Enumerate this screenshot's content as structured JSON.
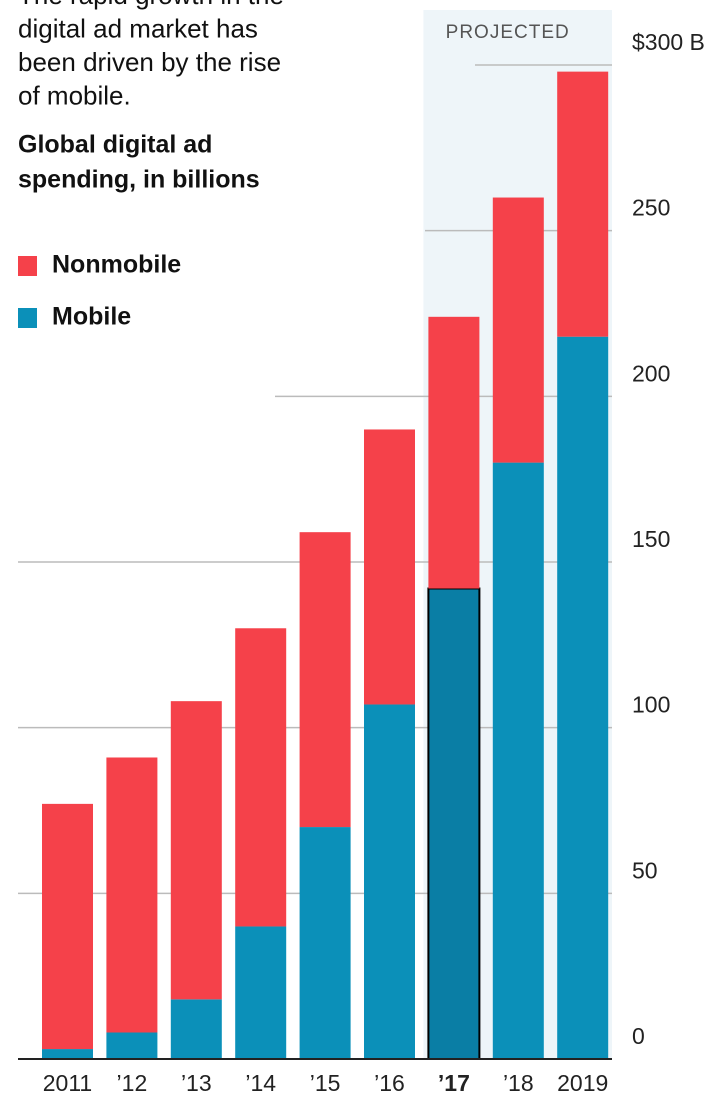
{
  "chart_data": {
    "type": "stacked_bar",
    "intro": [
      "The rapid growth in the",
      "digital ad market has",
      "been driven by the rise",
      "of mobile."
    ],
    "subtitle": [
      "Global digital ad",
      "spending, in billions"
    ],
    "categories": [
      "2011",
      "’12",
      "’13",
      "’14",
      "’15",
      "’16",
      "’17",
      "’18",
      "2019"
    ],
    "series": [
      {
        "name": "Mobile",
        "color": "#0b90b9",
        "values": [
          3,
          8,
          18,
          40,
          70,
          107,
          142,
          180,
          218
        ]
      },
      {
        "name": "Nonmobile",
        "color": "#f5414a",
        "values": [
          74,
          83,
          90,
          90,
          89,
          83,
          82,
          80,
          80
        ]
      }
    ],
    "ylim": [
      0,
      300
    ],
    "yticks": [
      0,
      50,
      100,
      150,
      200,
      250,
      {
        "value": 300,
        "label": "$300 B"
      }
    ],
    "grid": true,
    "projected": {
      "label": "PROJECTED",
      "from": "’17"
    },
    "highlight": {
      "series": "Mobile",
      "category": "’17"
    }
  }
}
